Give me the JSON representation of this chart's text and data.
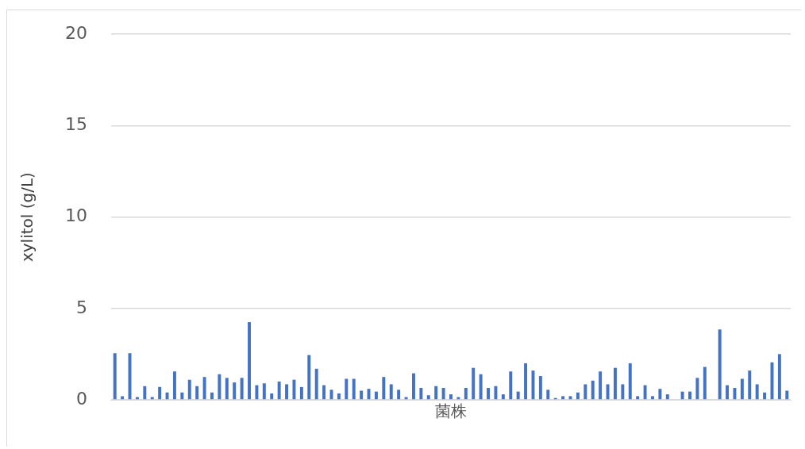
{
  "chart_data": {
    "type": "bar",
    "xlabel": "菌株",
    "ylabel": "xylitol (g/L)",
    "color": "#4472c4",
    "ylim": [
      0,
      20
    ],
    "yticks": [
      0,
      5,
      10,
      15,
      20
    ],
    "grid": "y",
    "tick_labels": "y",
    "values": [
      2.55,
      0.2,
      2.55,
      0.15,
      0.75,
      0.15,
      0.7,
      0.4,
      1.55,
      0.4,
      1.1,
      0.75,
      1.25,
      0.4,
      1.4,
      1.2,
      0.95,
      1.2,
      4.25,
      0.8,
      0.9,
      0.35,
      1.0,
      0.85,
      1.1,
      0.7,
      2.45,
      1.7,
      0.8,
      0.55,
      0.35,
      1.15,
      1.15,
      0.5,
      0.6,
      0.45,
      1.25,
      0.85,
      0.55,
      0.15,
      1.45,
      0.65,
      0.25,
      0.75,
      0.65,
      0.3,
      0.15,
      0.65,
      1.75,
      1.4,
      0.65,
      0.75,
      0.3,
      1.55,
      0.45,
      2.0,
      1.6,
      1.3,
      0.55,
      0.1,
      0.2,
      0.2,
      0.4,
      0.85,
      1.05,
      1.55,
      0.85,
      1.75,
      0.85,
      2.0,
      0.2,
      0.8,
      0.2,
      0.6,
      0.3,
      0,
      0.45,
      0.45,
      1.2,
      1.8,
      0,
      3.85,
      0.8,
      0.65,
      1.15,
      1.6,
      0.85,
      0.4,
      2.05,
      2.5,
      0.5
    ],
    "categories": [
      null,
      null,
      null,
      null,
      null,
      null,
      null,
      null,
      null,
      null,
      null,
      null,
      null,
      null,
      null,
      null,
      null,
      null,
      null,
      null,
      null,
      null,
      null,
      null,
      null,
      null,
      null,
      null,
      null,
      null,
      null,
      null,
      null,
      null,
      null,
      null,
      null,
      null,
      null,
      null,
      null,
      null,
      null,
      null,
      null,
      null,
      null,
      null,
      null,
      null,
      null,
      null,
      null,
      null,
      null,
      null,
      null,
      null,
      null,
      null,
      null,
      null,
      null,
      null,
      null,
      null,
      null,
      null,
      null,
      null,
      null,
      null,
      null,
      null,
      null,
      null,
      null,
      null,
      null,
      null,
      null,
      null,
      null,
      null,
      null,
      null,
      null,
      null,
      null,
      null,
      null
    ]
  }
}
